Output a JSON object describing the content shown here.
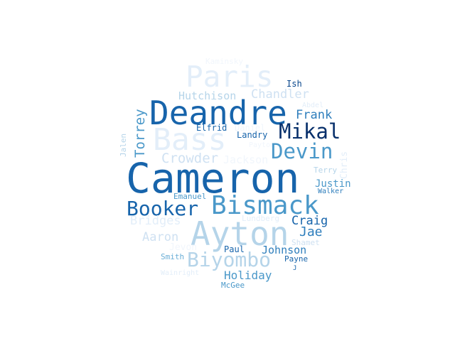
{
  "words": [
    "Kaminsky",
    "Paris",
    "Ish",
    "Hutchison",
    "Chandler",
    "Abdel",
    "Deandre",
    "Frank",
    "Torrey",
    "Elfrid",
    "Daniel",
    "Mikal",
    "Bass",
    "Landry",
    "Jalen",
    "Payton",
    "Devin",
    "Crowder",
    "Jackson",
    "Chris",
    "Terry",
    "Cameron",
    "Justin",
    "Emanuel",
    "Walker",
    "Booker",
    "Bismack",
    "Bridges",
    "Lundberg",
    "Craig",
    "Ayton",
    "Jae",
    "Aaron",
    "Shamet",
    "Jevon",
    "Paul",
    "Johnson",
    "Smith",
    "Biyombo",
    "Payne",
    "Wainright",
    "Holiday",
    "J",
    "McGee"
  ],
  "colors": {
    "palette": [
      "#f1f6fc",
      "#e3eef9",
      "#cfe1f2",
      "#b5d4e9",
      "#93c4de",
      "#6aaed6",
      "#4a98c9",
      "#2e7ebc",
      "#1764ab",
      "#08468b",
      "#08306b"
    ],
    "background": "#ffffff"
  }
}
